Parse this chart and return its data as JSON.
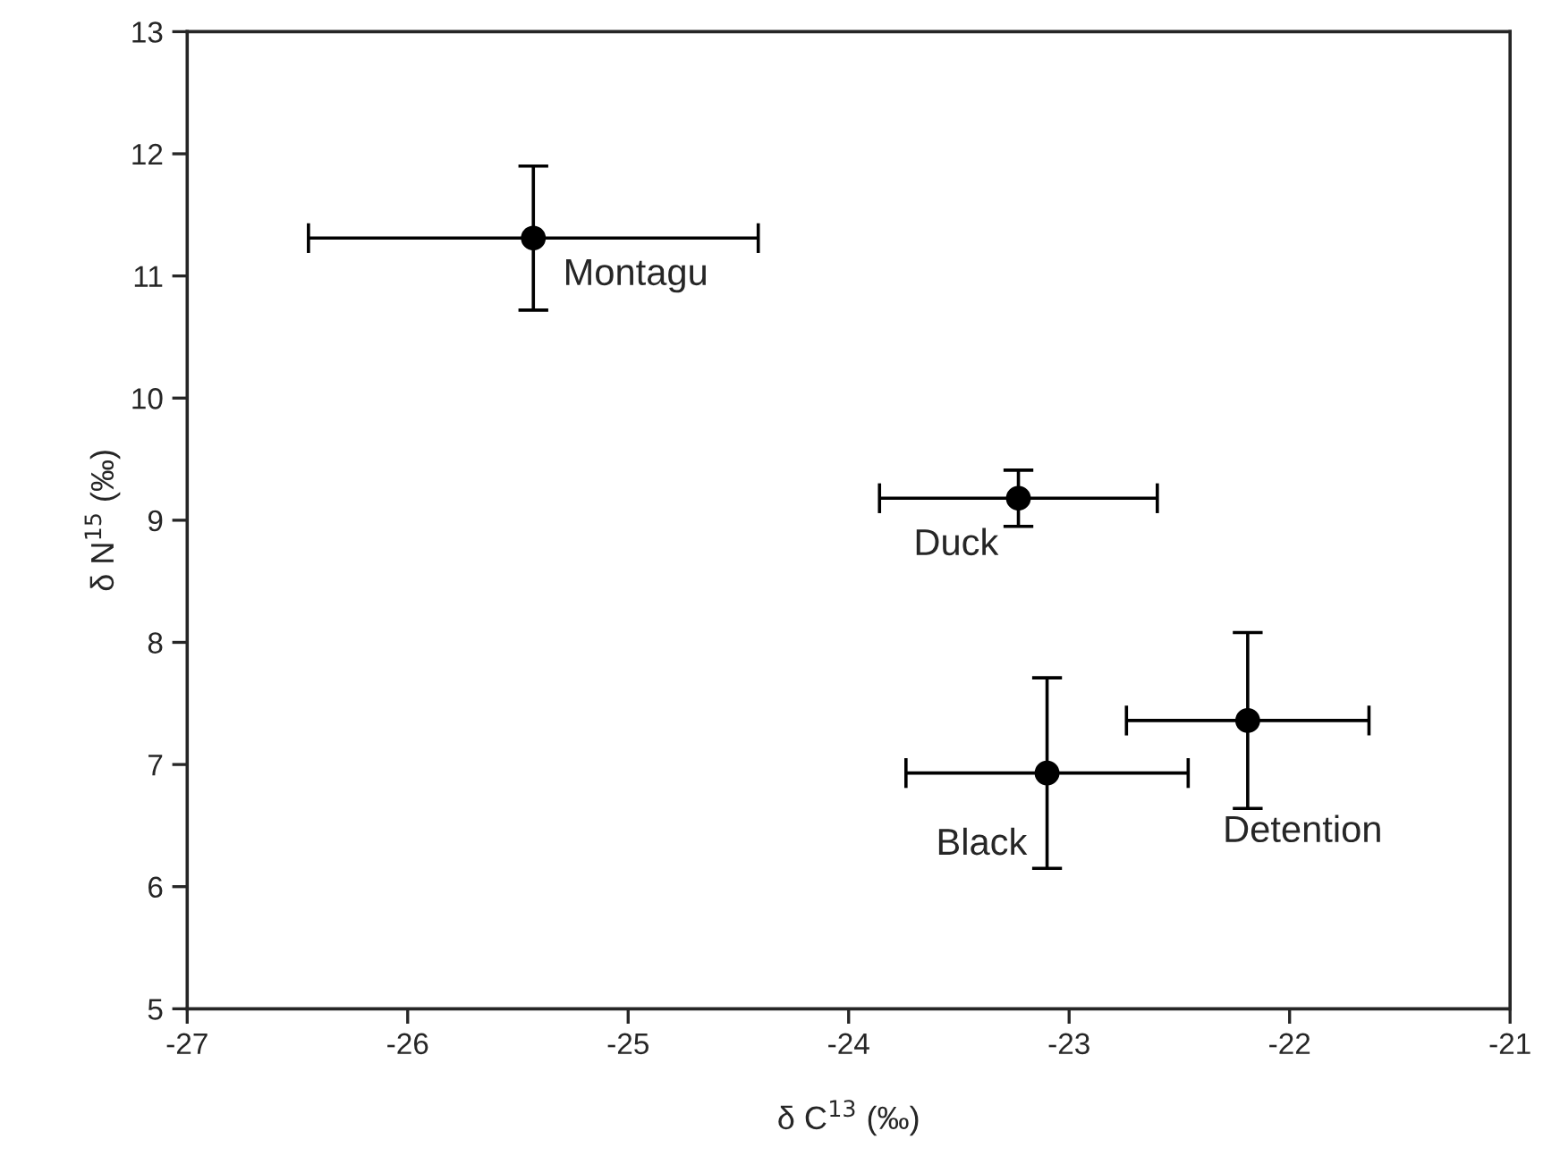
{
  "chart_data": {
    "type": "scatter",
    "xlabel": "δ C$^{13}$ (‰)",
    "ylabel": "δ N$^{15}$ (‰)",
    "x": [
      -25.43,
      -23.23,
      -23.1,
      -22.19
    ],
    "series": [
      {
        "color": "#000000",
        "values": [
          11.31,
          9.18,
          6.93,
          7.36
        ],
        "errors": [
          0.59,
          0.23,
          0.78,
          0.72
        ],
        "xerrors": [
          1.02,
          0.63,
          0.64,
          0.55
        ]
      }
    ],
    "marker": "circle",
    "xlim": [
      -27,
      -21
    ],
    "xticks": [
      -27,
      -26,
      -25,
      -24,
      -23,
      -22,
      -21
    ],
    "ylim": [
      5,
      13
    ],
    "yticks": [
      5,
      6,
      7,
      8,
      9,
      10,
      11,
      12,
      13
    ],
    "grid": false,
    "legend": false,
    "annotations": [
      {
        "text": "Montagu",
        "x": -25.43,
        "y": 11.31
      },
      {
        "text": "Duck",
        "x": -23.23,
        "y": 9.18
      },
      {
        "text": "Black",
        "x": -23.1,
        "y": 6.93
      },
      {
        "text": "Detention",
        "x": -22.19,
        "y": 7.36
      }
    ]
  }
}
